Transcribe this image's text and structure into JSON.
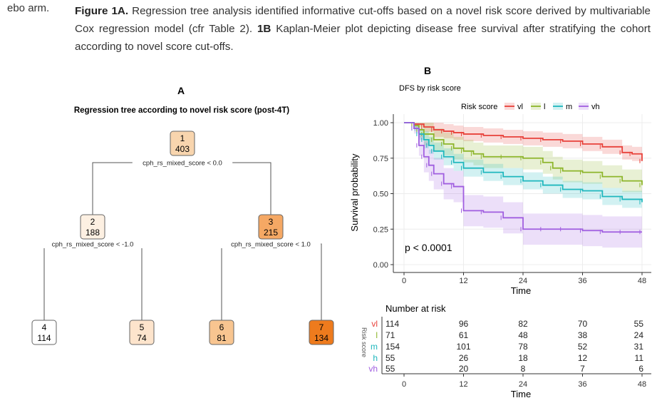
{
  "cut_text": "ebo arm.",
  "caption": {
    "fig_a_label": "Figure 1A.",
    "fig_a_text": " Regression tree analysis identified informative cut-offs based on a novel risk score derived by multivariable Cox regression model (cfr Table 2). ",
    "fig_b_label": "1B",
    "fig_b_text": " Kaplan-Meier plot depicting disease free survival after stratifying the cohort according to novel score cut-offs."
  },
  "panel_a": {
    "label": "A",
    "title": "Regression tree according to novel risk score (post-4T)",
    "nodes": [
      {
        "id": "1",
        "n": "403",
        "color": "#f8d5ae"
      },
      {
        "id": "2",
        "n": "188",
        "color": "#fdf0e2"
      },
      {
        "id": "3",
        "n": "215",
        "color": "#f5a864"
      },
      {
        "id": "4",
        "n": "114",
        "color": "#ffffff"
      },
      {
        "id": "5",
        "n": "74",
        "color": "#fde4cc"
      },
      {
        "id": "6",
        "n": "81",
        "color": "#f8c590"
      },
      {
        "id": "7",
        "n": "134",
        "color": "#ee7b1d"
      }
    ],
    "splits": [
      "cph_rs_mixed_score < 0.0",
      "cph_rs_mixed_score < -1.0",
      "cph_rs_mixed_score < 1.0"
    ]
  },
  "panel_b": {
    "label": "B",
    "title": "DFS by risk score",
    "pvalue": "p < 0.0001",
    "risk_table_title": "Number at risk",
    "risk_table_ylabel": "Risk score"
  },
  "chart_data": {
    "type": "line",
    "title": "DFS by risk score",
    "xlabel": "Time",
    "ylabel": "Survival probability",
    "xlim": [
      0,
      48
    ],
    "ylim": [
      0,
      1
    ],
    "x_ticks": [
      0,
      12,
      24,
      36,
      48
    ],
    "y_ticks": [
      "0.00",
      "0.25",
      "0.50",
      "0.75",
      "1.00"
    ],
    "legend_title": "Risk score",
    "legend_position": "top",
    "series": [
      {
        "name": "vl",
        "color": "#e8413a",
        "x": [
          0,
          2,
          4,
          6,
          8,
          10,
          12,
          16,
          20,
          24,
          28,
          32,
          36,
          40,
          44,
          46,
          48
        ],
        "values": [
          1.0,
          0.99,
          0.97,
          0.95,
          0.94,
          0.93,
          0.92,
          0.91,
          0.9,
          0.89,
          0.88,
          0.87,
          0.85,
          0.83,
          0.79,
          0.78,
          0.73
        ]
      },
      {
        "name": "l",
        "color": "#8db52a",
        "x": [
          0,
          2,
          3,
          4,
          6,
          8,
          10,
          12,
          14,
          16,
          20,
          24,
          28,
          30,
          32,
          36,
          40,
          44,
          48
        ],
        "values": [
          1.0,
          0.98,
          0.95,
          0.92,
          0.88,
          0.85,
          0.82,
          0.8,
          0.78,
          0.76,
          0.76,
          0.75,
          0.72,
          0.68,
          0.66,
          0.65,
          0.62,
          0.59,
          0.56
        ]
      },
      {
        "name": "m",
        "color": "#1fb7bd",
        "x": [
          0,
          2,
          3,
          4,
          5,
          6,
          8,
          10,
          12,
          16,
          20,
          24,
          28,
          32,
          36,
          40,
          44,
          48
        ],
        "values": [
          1.0,
          0.96,
          0.92,
          0.88,
          0.84,
          0.8,
          0.76,
          0.72,
          0.68,
          0.65,
          0.62,
          0.59,
          0.56,
          0.53,
          0.52,
          0.48,
          0.46,
          0.44
        ]
      },
      {
        "name": "vh",
        "color": "#a05ee0",
        "x": [
          0,
          2,
          3,
          4,
          5,
          6,
          8,
          10,
          12,
          16,
          20,
          24,
          28,
          32,
          36,
          40,
          44,
          48
        ],
        "values": [
          1.0,
          0.96,
          0.84,
          0.76,
          0.7,
          0.64,
          0.57,
          0.55,
          0.38,
          0.37,
          0.33,
          0.25,
          0.25,
          0.25,
          0.24,
          0.23,
          0.23,
          0.23
        ]
      }
    ],
    "risk_table": {
      "times": [
        0,
        12,
        24,
        36,
        48
      ],
      "rows": [
        {
          "name": "vl",
          "color": "#e8413a",
          "values": [
            114,
            96,
            82,
            70,
            55
          ]
        },
        {
          "name": "l",
          "color": "#8db52a",
          "values": [
            71,
            61,
            48,
            38,
            24
          ]
        },
        {
          "name": "m",
          "color": "#1fb7bd",
          "values": [
            154,
            101,
            78,
            52,
            31
          ]
        },
        {
          "name": "h",
          "color": "#1fb7bd",
          "values": [
            55,
            26,
            18,
            12,
            11
          ]
        },
        {
          "name": "vh",
          "color": "#a05ee0",
          "values": [
            55,
            20,
            8,
            7,
            6
          ]
        }
      ]
    }
  }
}
